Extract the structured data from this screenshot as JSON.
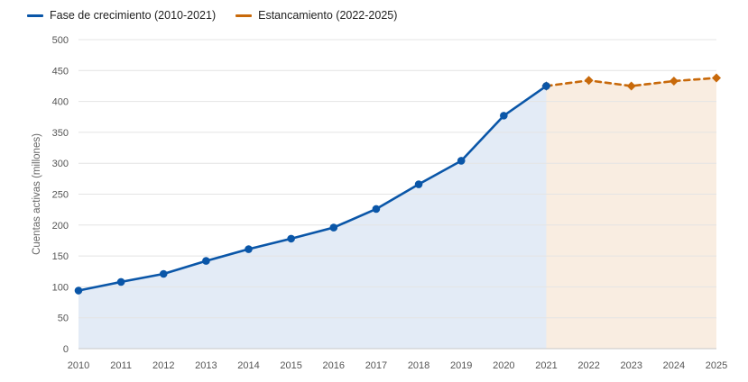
{
  "chart_data": {
    "type": "line",
    "title": "",
    "xlabel": "",
    "ylabel": "Cuentas activas (millones)",
    "ylim": [
      0,
      500
    ],
    "yticks": [
      "0",
      "50",
      "100",
      "150",
      "200",
      "250",
      "300",
      "350",
      "400",
      "450",
      "500"
    ],
    "xticks": [
      "2010",
      "2011",
      "2012",
      "2013",
      "2014",
      "2015",
      "2016",
      "2017",
      "2018",
      "2019",
      "2020",
      "2021",
      "2022",
      "2023",
      "2024",
      "2025"
    ],
    "grid": true,
    "legend_position": "top-left",
    "series": [
      {
        "name": "Fase de crecimiento (2010-2021)",
        "color": "#0a56a8",
        "fill": "#e3ebf6",
        "line_style": "solid",
        "marker": "circle",
        "x": [
          2010,
          2011,
          2012,
          2013,
          2014,
          2015,
          2016,
          2017,
          2018,
          2019,
          2020,
          2021
        ],
        "y": [
          94,
          108,
          121,
          142,
          161,
          178,
          196,
          226,
          266,
          304,
          377,
          425
        ]
      },
      {
        "name": "Estancamiento (2022-2025)",
        "color": "#c8690a",
        "fill": "#f9ede1",
        "line_style": "dashed",
        "marker": "diamond",
        "x": [
          2021,
          2022,
          2023,
          2024,
          2025
        ],
        "y": [
          425,
          434,
          425,
          433,
          438
        ]
      }
    ]
  }
}
